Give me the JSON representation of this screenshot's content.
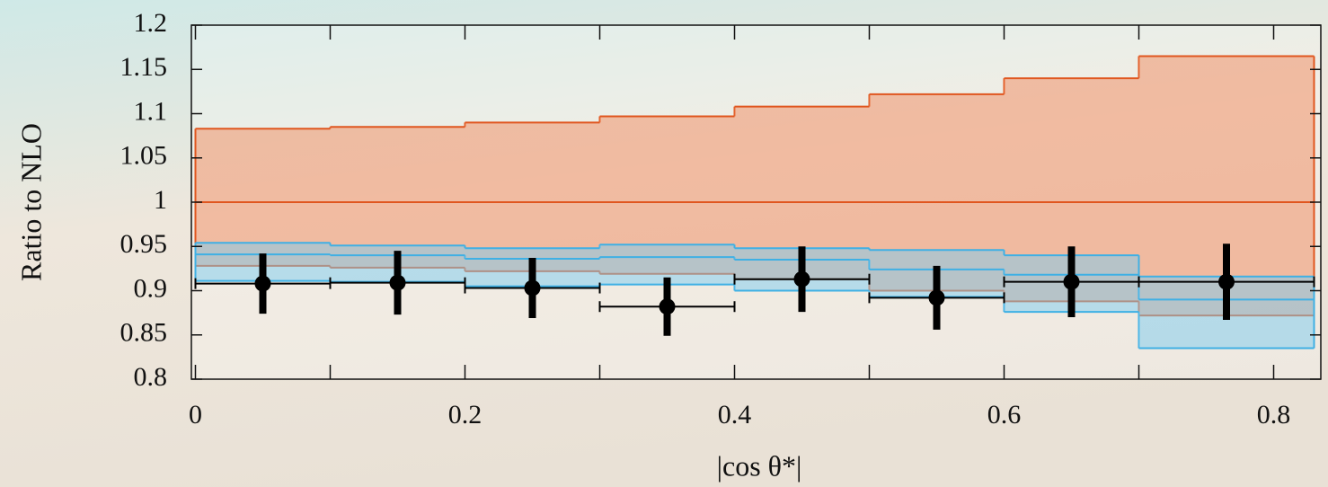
{
  "chart_data": {
    "type": "step",
    "xlabel": "|cos θ*|",
    "ylabel": "Ratio to NLO",
    "xlim": [
      -0.003,
      0.835
    ],
    "ylim": [
      0.8,
      1.2
    ],
    "xticks": [
      0,
      0.2,
      0.4,
      0.6,
      0.8
    ],
    "xminorticks": [
      0.1,
      0.3,
      0.5,
      0.7
    ],
    "yticks": [
      0.8,
      0.85,
      0.9,
      0.95,
      1,
      1.05,
      1.1,
      1.15,
      1.2
    ],
    "bins": [
      0,
      0.1,
      0.2,
      0.3,
      0.4,
      0.5,
      0.6,
      0.7,
      0.83
    ],
    "bands": [
      {
        "color": "#f08a5d",
        "line_color": "#e0561f",
        "upper": [
          1.083,
          1.085,
          1.09,
          1.097,
          1.108,
          1.122,
          1.14,
          1.165
        ],
        "center": [
          1,
          1,
          1,
          1,
          1,
          1,
          1,
          1
        ],
        "lower": [
          0.928,
          0.926,
          0.922,
          0.919,
          0.913,
          0.9,
          0.888,
          0.872
        ]
      },
      {
        "color": "#7ccbef",
        "line_color": "#3fb0e4",
        "upper": [
          0.954,
          0.951,
          0.948,
          0.952,
          0.948,
          0.946,
          0.94,
          0.916
        ],
        "center": [
          0.941,
          0.94,
          0.936,
          0.938,
          0.935,
          0.924,
          0.918,
          0.89
        ],
        "lower": [
          0.911,
          0.91,
          0.905,
          0.907,
          0.9,
          0.893,
          0.876,
          0.835
        ]
      }
    ],
    "points": {
      "color": "#000000",
      "x": [
        0.05,
        0.15,
        0.25,
        0.35,
        0.45,
        0.55,
        0.65,
        0.765
      ],
      "values": [
        0.908,
        0.909,
        0.903,
        0.882,
        0.913,
        0.892,
        0.91,
        0.91
      ],
      "errors": [
        0.034,
        0.036,
        0.034,
        0.033,
        0.037,
        0.036,
        0.04,
        0.043
      ]
    }
  }
}
